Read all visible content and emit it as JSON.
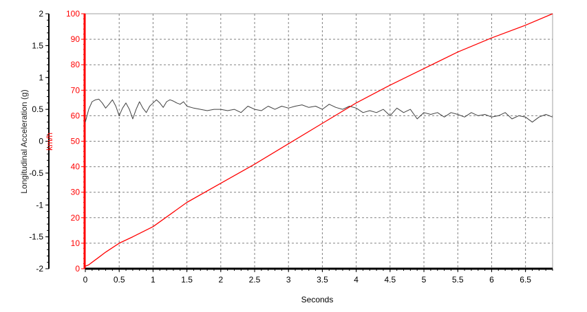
{
  "chart_data": {
    "type": "line",
    "xlabel": "Seconds",
    "ylabel_left": "Longitudinal Acceleration (g)",
    "ylabel_right": "km/h",
    "xlim": [
      0,
      6.9
    ],
    "ylim_left": [
      -2,
      2
    ],
    "ylim_right": [
      0,
      100
    ],
    "grid": true,
    "x_ticks": [
      "0",
      "0.5",
      "1",
      "1.5",
      "2",
      "2.5",
      "3",
      "3.5",
      "4",
      "4.5",
      "5",
      "5.5",
      "6",
      "6.5"
    ],
    "y_left_ticks": [
      "2",
      "1.5",
      "1",
      "0.5",
      "0",
      "-0.5",
      "-1",
      "-1.5",
      "-2"
    ],
    "y_right_ticks": [
      "100",
      "90",
      "80",
      "70",
      "60",
      "50",
      "40",
      "30",
      "20",
      "10",
      "0"
    ],
    "colors": {
      "speed": "#ff0000",
      "acceleration": "#404040",
      "grid": "#808080",
      "left_axis": "#000000",
      "right_axis": "#ff0000"
    },
    "series": [
      {
        "axis": "left",
        "x": [
          0,
          0.05,
          0.1,
          0.15,
          0.2,
          0.25,
          0.3,
          0.35,
          0.4,
          0.45,
          0.5,
          0.55,
          0.6,
          0.65,
          0.7,
          0.75,
          0.8,
          0.85,
          0.9,
          0.95,
          1.0,
          1.05,
          1.1,
          1.15,
          1.2,
          1.25,
          1.3,
          1.35,
          1.4,
          1.45,
          1.5,
          1.6,
          1.7,
          1.8,
          1.9,
          2.0,
          2.1,
          2.2,
          2.3,
          2.4,
          2.5,
          2.6,
          2.7,
          2.8,
          2.9,
          3.0,
          3.1,
          3.2,
          3.3,
          3.4,
          3.5,
          3.6,
          3.7,
          3.8,
          3.9,
          4.0,
          4.1,
          4.2,
          4.3,
          4.4,
          4.5,
          4.6,
          4.7,
          4.8,
          4.9,
          5.0,
          5.1,
          5.2,
          5.3,
          5.4,
          5.5,
          5.6,
          5.7,
          5.8,
          5.9,
          6.0,
          6.1,
          6.2,
          6.3,
          6.4,
          6.5,
          6.6,
          6.7,
          6.8,
          6.9
        ],
        "values": [
          0.3,
          0.5,
          0.62,
          0.65,
          0.66,
          0.6,
          0.52,
          0.58,
          0.65,
          0.55,
          0.4,
          0.52,
          0.6,
          0.5,
          0.35,
          0.5,
          0.62,
          0.52,
          0.45,
          0.55,
          0.6,
          0.65,
          0.6,
          0.53,
          0.62,
          0.65,
          0.63,
          0.6,
          0.58,
          0.62,
          0.55,
          0.52,
          0.5,
          0.48,
          0.5,
          0.5,
          0.48,
          0.5,
          0.45,
          0.55,
          0.5,
          0.48,
          0.55,
          0.5,
          0.55,
          0.52,
          0.55,
          0.57,
          0.53,
          0.55,
          0.5,
          0.58,
          0.53,
          0.5,
          0.55,
          0.52,
          0.45,
          0.48,
          0.45,
          0.5,
          0.4,
          0.52,
          0.45,
          0.5,
          0.35,
          0.45,
          0.42,
          0.45,
          0.38,
          0.45,
          0.42,
          0.38,
          0.45,
          0.4,
          0.42,
          0.38,
          0.4,
          0.45,
          0.35,
          0.4,
          0.38,
          0.3,
          0.38,
          0.42,
          0.38
        ]
      },
      {
        "axis": "right",
        "x": [
          0,
          0.05,
          0.1,
          0.2,
          0.3,
          0.5,
          0.7,
          1.0,
          1.5,
          2.0,
          2.5,
          3.0,
          3.5,
          4.0,
          4.5,
          5.0,
          5.5,
          6.0,
          6.5,
          6.9
        ],
        "values": [
          1,
          1.5,
          2.5,
          4.5,
          6.5,
          10,
          12.5,
          16.5,
          26,
          33.5,
          41,
          49,
          57,
          65,
          72,
          78.5,
          85,
          90.5,
          95.5,
          100
        ]
      }
    ]
  }
}
